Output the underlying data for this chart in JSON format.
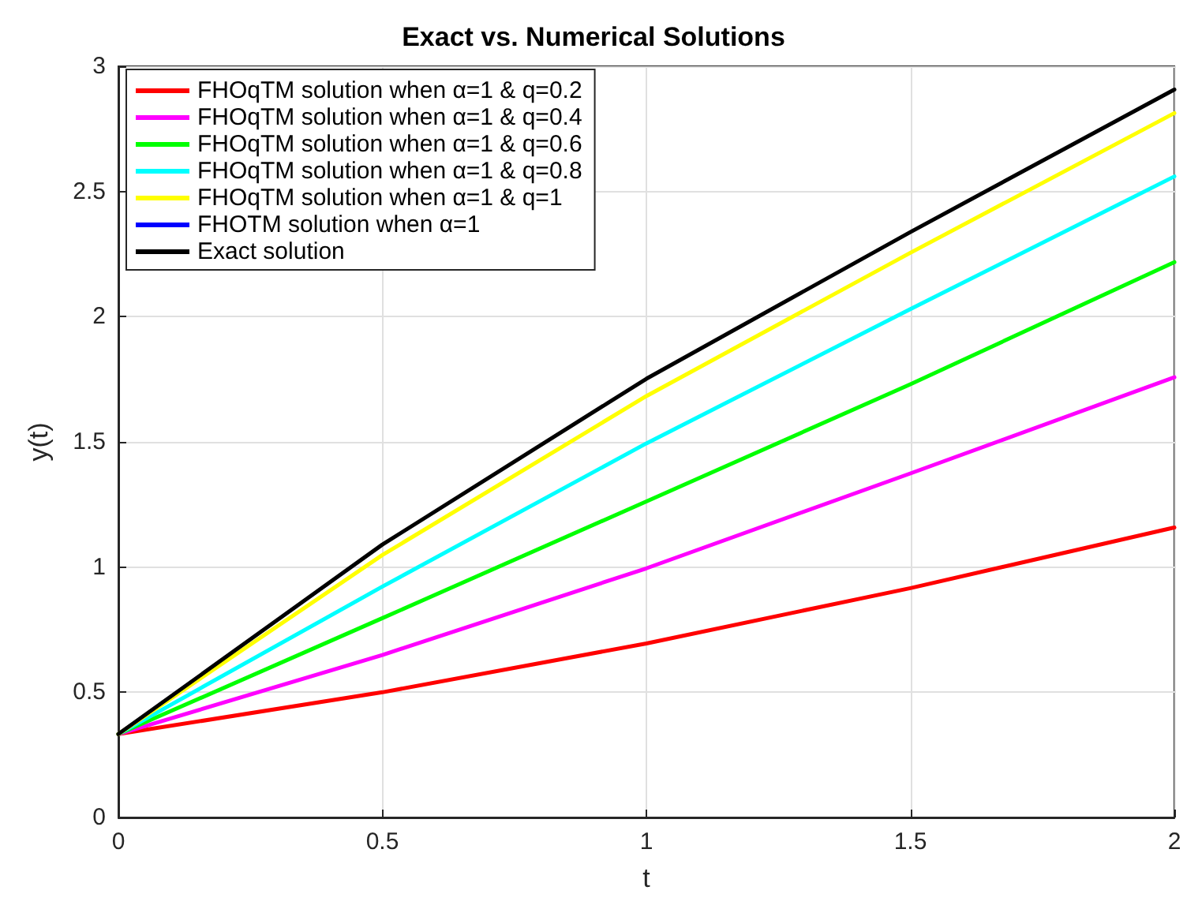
{
  "chart_data": {
    "type": "line",
    "title": "Exact vs. Numerical Solutions",
    "xlabel": "t",
    "ylabel": "y(t)",
    "x": [
      0,
      0.5,
      1,
      1.5,
      2
    ],
    "series": [
      {
        "name": "FHOqTM solution when α=1 & q=0.2",
        "color": "#ff0000",
        "values": [
          0.333,
          0.5,
          0.695,
          0.916,
          1.158
        ]
      },
      {
        "name": "FHOqTM solution when α=1 & q=0.4",
        "color": "#ff00ff",
        "values": [
          0.333,
          0.649,
          0.995,
          1.374,
          1.758
        ]
      },
      {
        "name": "FHOqTM solution when α=1 & q=0.6",
        "color": "#00ff00",
        "values": [
          0.333,
          0.796,
          1.262,
          1.73,
          2.218
        ]
      },
      {
        "name": "FHOqTM solution when α=1 & q=0.8",
        "color": "#00ffff",
        "values": [
          0.333,
          0.922,
          1.494,
          2.03,
          2.56
        ]
      },
      {
        "name": "FHOqTM solution when α=1 & q=1",
        "color": "#ffff00",
        "values": [
          0.333,
          1.048,
          1.683,
          2.255,
          2.813
        ]
      },
      {
        "name": "FHOTM solution when α=1",
        "color": "#0000ff",
        "values": [
          null,
          null,
          null,
          null,
          null
        ]
      },
      {
        "name": "Exact solution",
        "color": "#000000",
        "values": [
          0.333,
          1.09,
          1.752,
          2.338,
          2.907
        ]
      }
    ],
    "xlim": [
      0,
      2
    ],
    "xticks": [
      0,
      0.5,
      1,
      1.5,
      2
    ],
    "ylim": [
      0,
      3
    ],
    "yticks": [
      0,
      0.5,
      1,
      1.5,
      2,
      2.5,
      3
    ],
    "grid": true,
    "legend": "top left",
    "marker": "none",
    "line_style": "solid"
  }
}
